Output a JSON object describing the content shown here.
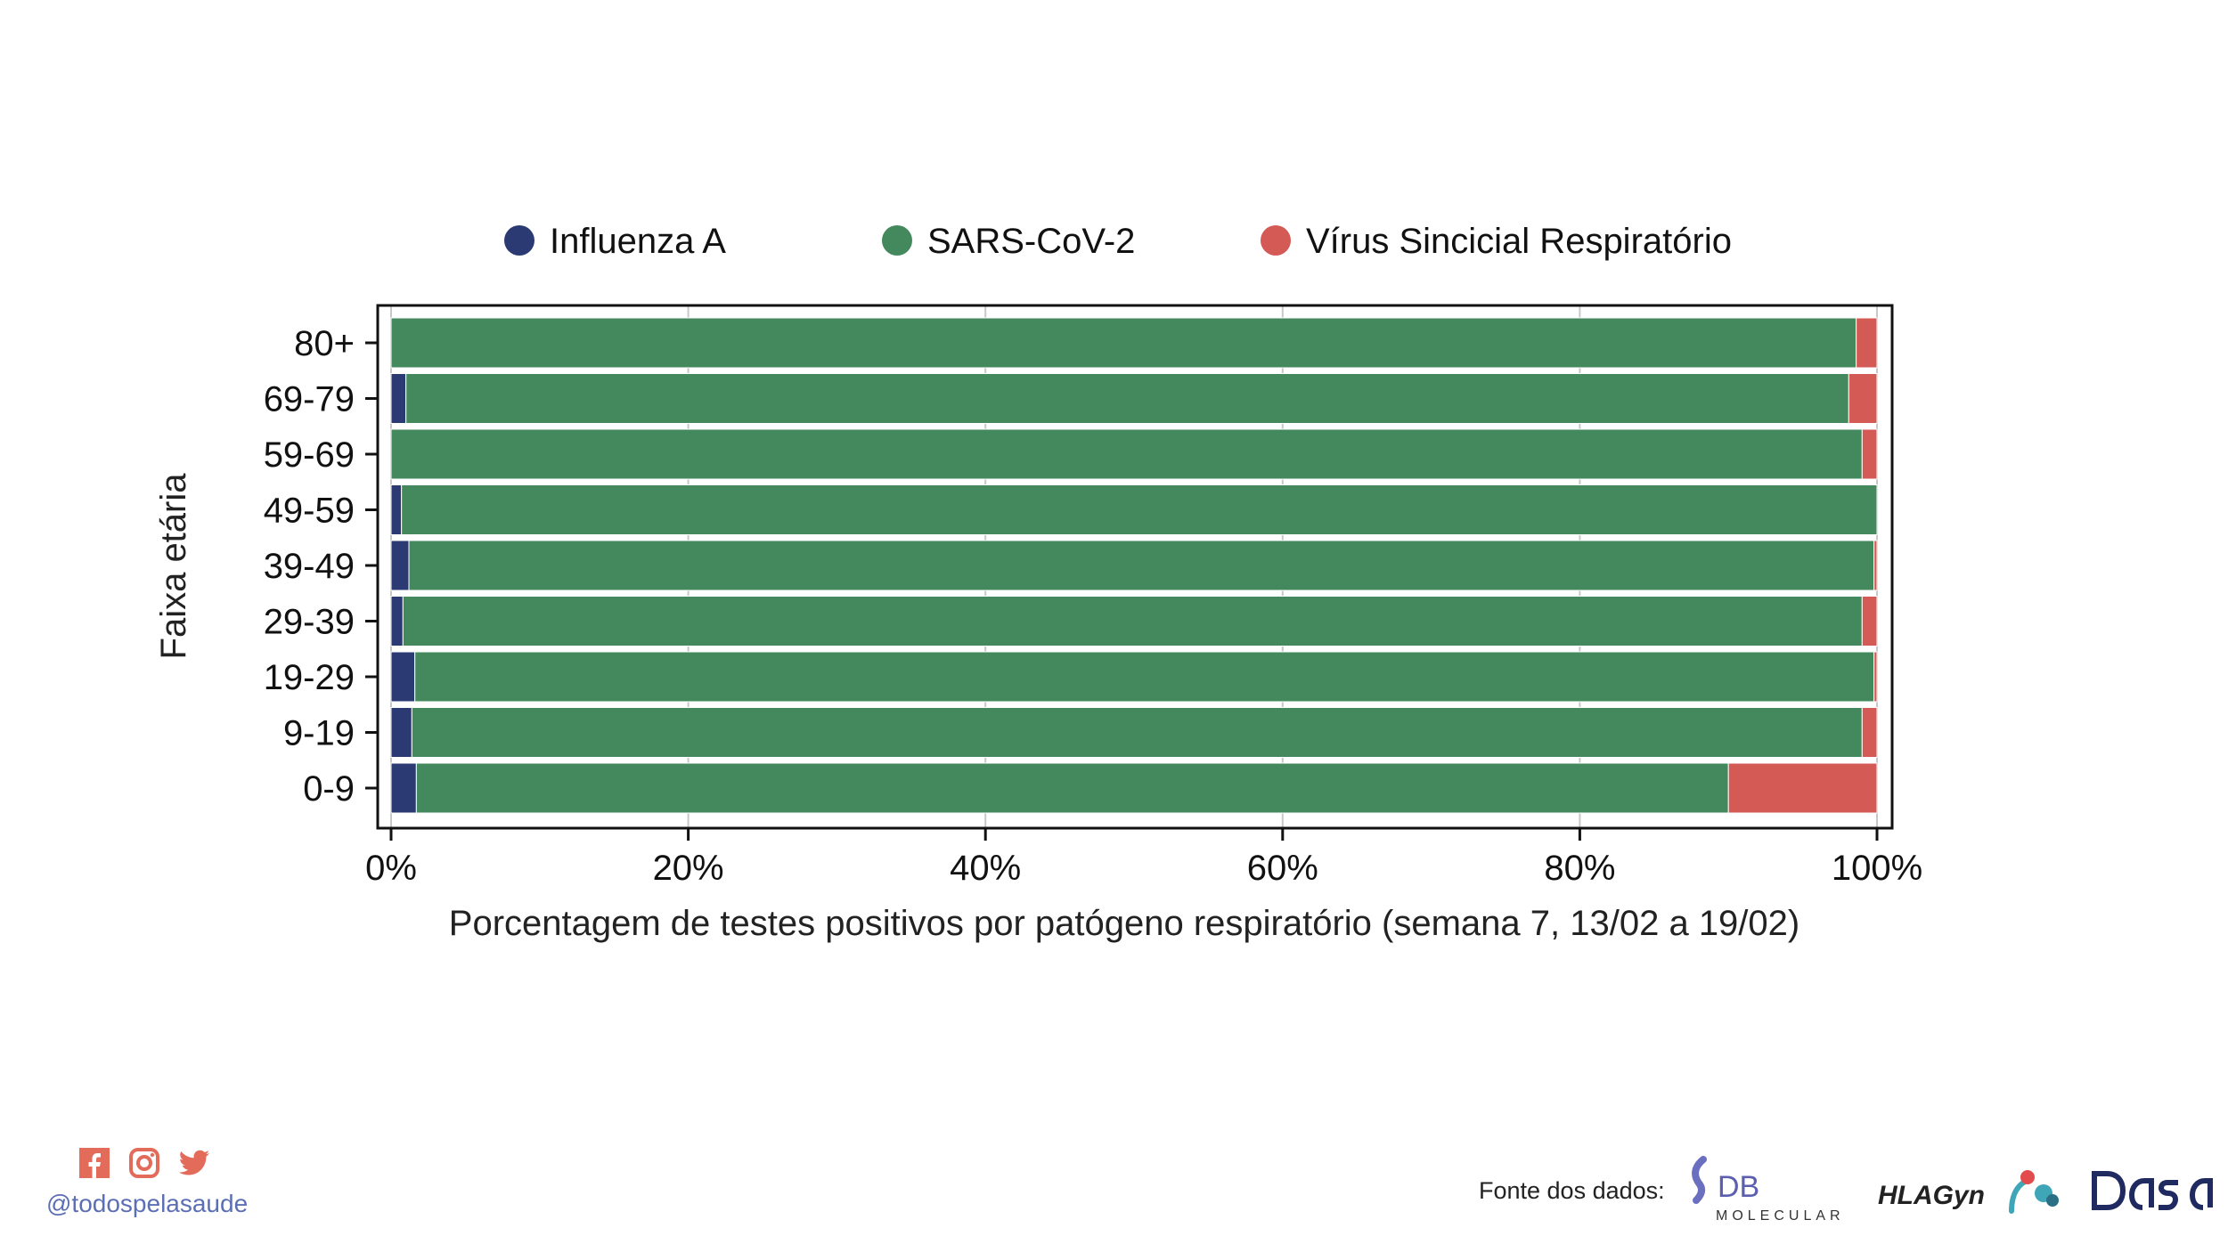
{
  "chart_data": {
    "type": "bar",
    "orientation": "horizontal",
    "stacked": true,
    "ylabel": "Faixa etária",
    "xlabel": "Porcentagem de testes positivos por patógeno respiratório (semana 7, 13/02 a 19/02)",
    "xlim": [
      0,
      100
    ],
    "x_ticks": [
      "0%",
      "20%",
      "40%",
      "60%",
      "80%",
      "100%"
    ],
    "grid": true,
    "legend_position": "top",
    "categories": [
      "80+",
      "69-79",
      "59-69",
      "49-59",
      "39-49",
      "29-39",
      "19-29",
      "9-19",
      "0-9"
    ],
    "series": [
      {
        "name": "Influenza A",
        "color": "#2b3a73",
        "values": [
          0,
          1.0,
          0,
          0.7,
          1.2,
          0.8,
          1.6,
          1.4,
          1.7
        ]
      },
      {
        "name": "SARS-CoV-2",
        "color": "#43895d",
        "values": [
          98.6,
          97.1,
          99.0,
          99.3,
          98.6,
          98.2,
          98.2,
          97.6,
          88.3
        ]
      },
      {
        "name": "Vírus Sincicial Respiratório",
        "color": "#d45a55",
        "values": [
          1.4,
          1.9,
          1.0,
          0,
          0.2,
          1.0,
          0.2,
          1.0,
          10.0
        ]
      }
    ]
  },
  "footer": {
    "handle": "@todospelasaude",
    "source_label": "Fonte dos dados:",
    "logos": {
      "db_main": "DB",
      "db_sub": "MOLECULAR",
      "hlagyn": "HLAGyn",
      "dasa": "DASA"
    },
    "social_icons": [
      "facebook-icon",
      "instagram-icon",
      "twitter-icon"
    ],
    "accent_color": "#e36b5a"
  }
}
